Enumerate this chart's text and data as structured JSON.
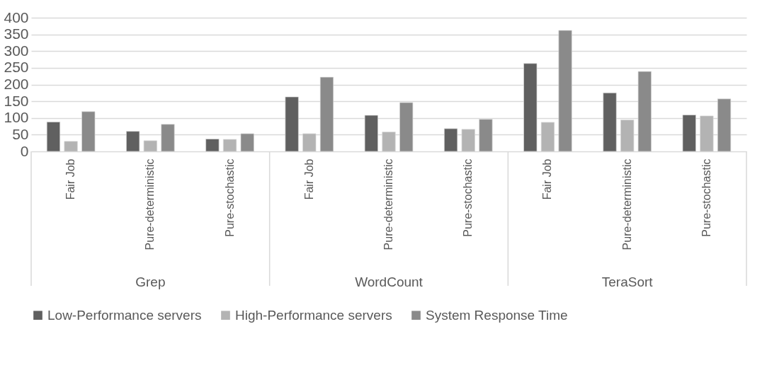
{
  "chart_data": {
    "type": "bar",
    "categories": [
      "Fair Job",
      "Pure-deterministic",
      "Pure-stochastic",
      "Fair Job",
      "Pure-deterministic",
      "Pure-stochastic",
      "Fair Job",
      "Pure-deterministic",
      "Pure-stochastic"
    ],
    "series": [
      {
        "name": "Low-Performance servers",
        "color": "#606060",
        "values": [
          88,
          60,
          37,
          163,
          108,
          68,
          263,
          175,
          109
        ]
      },
      {
        "name": "High-Performance servers",
        "color": "#b3b3b3",
        "values": [
          30,
          32,
          36,
          53,
          58,
          66,
          87,
          94,
          106
        ]
      },
      {
        "name": "System Response Time",
        "color": "#8a8a8a",
        "values": [
          119,
          81,
          53,
          222,
          146,
          96,
          362,
          239,
          157
        ]
      }
    ],
    "annotations": [
      "Grep",
      "WordCount",
      "TeraSort"
    ],
    "ylim": [
      0,
      400
    ],
    "yticks": [
      0,
      50,
      100,
      150,
      200,
      250,
      300,
      350,
      400
    ],
    "grid": "y",
    "legend": "bottom"
  }
}
